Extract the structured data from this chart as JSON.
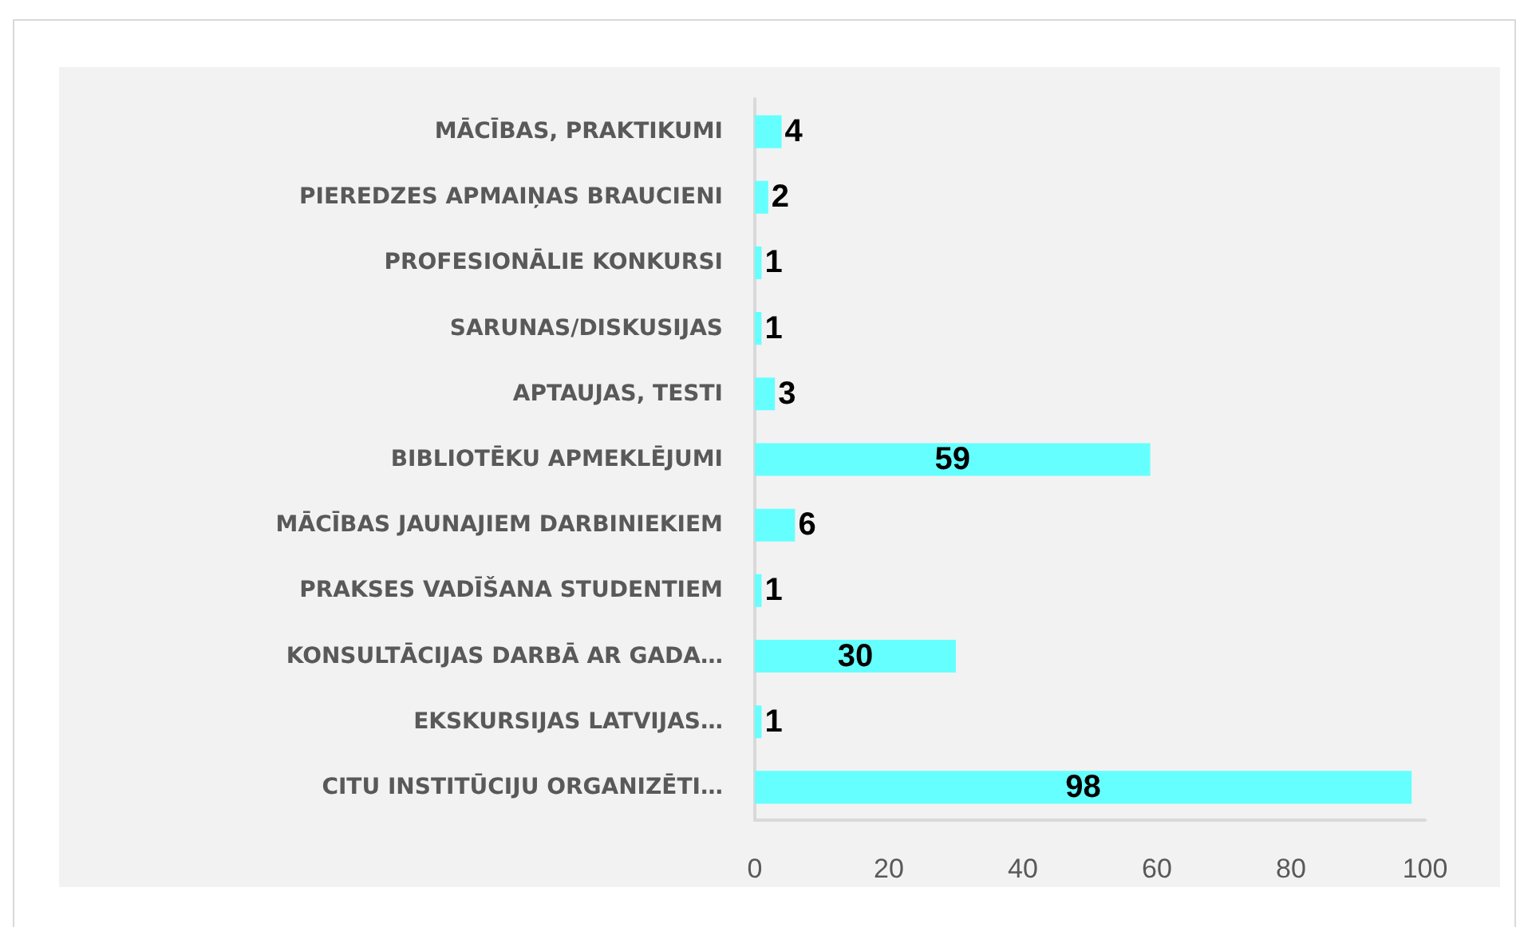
{
  "chart_data": {
    "type": "bar",
    "orientation": "horizontal",
    "categories": [
      "MĀCĪBAS, PRAKTIKUMI",
      "PIEREDZES APMAIŅAS BRAUCIENI",
      "PROFESIONĀLIE KONKURSI",
      "SARUNAS/DISKUSIJAS",
      "APTAUJAS, TESTI",
      "BIBLIOTĒKU APMEKLĒJUMI",
      "MĀCĪBAS JAUNAJIEM DARBINIEKIEM",
      "PRAKSES VADĪŠANA STUDENTIEM",
      "KONSULTĀCIJAS DARBĀ AR GADA…",
      "EKSKURSIJAS LATVIJAS…",
      "CITU INSTITŪCIJU ORGANIZĒTI…"
    ],
    "values": [
      4,
      2,
      1,
      1,
      3,
      59,
      6,
      1,
      30,
      1,
      98
    ],
    "color": "#66ffff",
    "xlim": [
      0,
      100
    ],
    "xticks": [
      0,
      20,
      40,
      60,
      80,
      100
    ],
    "data_labels": true
  }
}
